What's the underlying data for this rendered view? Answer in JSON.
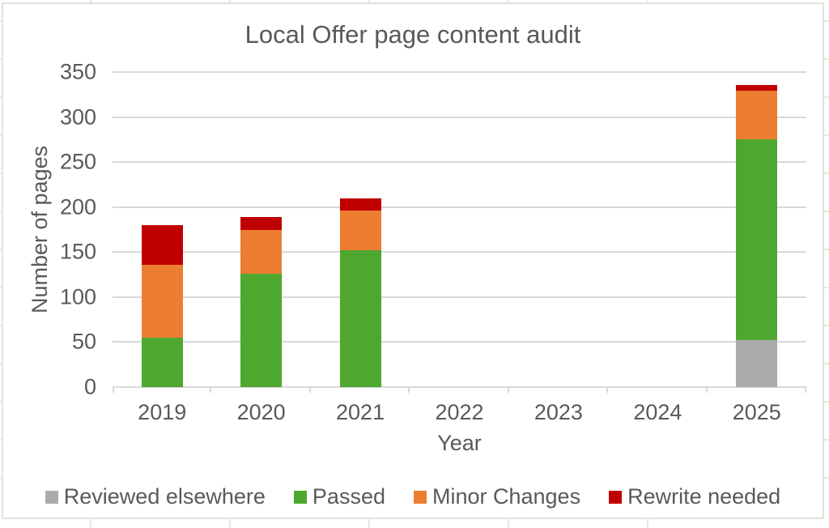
{
  "chart_data": {
    "type": "bar",
    "stacked": true,
    "title": "Local Offer page content audit",
    "xlabel": "Year",
    "ylabel": "Number of pages",
    "categories": [
      "2019",
      "2020",
      "2021",
      "2022",
      "2023",
      "2024",
      "2025"
    ],
    "series": [
      {
        "name": "Reviewed elsewhere",
        "color": "#ABABAB",
        "values": [
          0,
          0,
          0,
          0,
          0,
          0,
          52
        ]
      },
      {
        "name": "Passed",
        "color": "#4EA72E",
        "values": [
          55,
          126,
          152,
          0,
          0,
          0,
          223
        ]
      },
      {
        "name": "Minor Changes",
        "color": "#ED7D31",
        "values": [
          81,
          49,
          44,
          0,
          0,
          0,
          54
        ]
      },
      {
        "name": "Rewrite needed",
        "color": "#C00000",
        "values": [
          44,
          14,
          14,
          0,
          0,
          0,
          7
        ]
      }
    ],
    "ylim": [
      0,
      350
    ],
    "yticks": [
      0,
      50,
      100,
      150,
      200,
      250,
      300,
      350
    ],
    "grid": true,
    "legend_position": "bottom",
    "gridline_color": "#D9D9D9",
    "text_color_hex": "#595959"
  }
}
